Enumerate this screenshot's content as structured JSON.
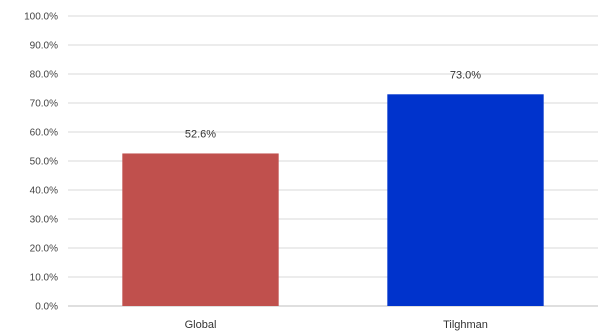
{
  "chart_data": {
    "type": "bar",
    "title": "",
    "xlabel": "",
    "ylabel": "",
    "categories": [
      "Global",
      "Tilghman"
    ],
    "values": [
      52.6,
      73.0
    ],
    "data_labels": [
      "52.6%",
      "73.0%"
    ],
    "bar_colors": [
      "#c0504d",
      "#0033cc"
    ],
    "ylim": [
      0,
      100
    ],
    "yticks": [
      0,
      10,
      20,
      30,
      40,
      50,
      60,
      70,
      80,
      90,
      100
    ],
    "ytick_labels": [
      "0.0%",
      "10.0%",
      "20.0%",
      "30.0%",
      "40.0%",
      "50.0%",
      "60.0%",
      "70.0%",
      "80.0%",
      "90.0%",
      "100.0%"
    ],
    "grid": true,
    "legend": "none"
  },
  "colors": {
    "grid": "#d9d9d9",
    "axis": "#bfbfbf"
  }
}
